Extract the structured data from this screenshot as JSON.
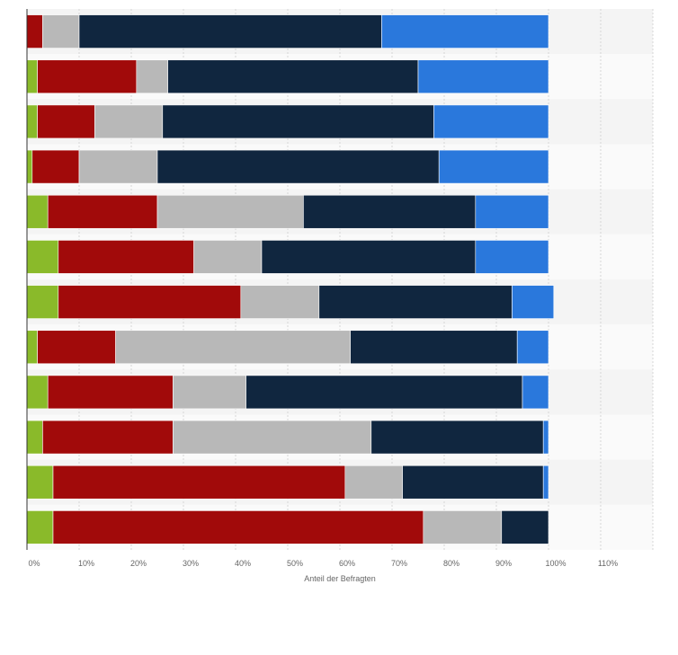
{
  "chart_data": {
    "type": "bar",
    "orientation": "horizontal",
    "stacked": true,
    "xlabel": "Anteil der Befragten",
    "xlim": [
      0,
      120
    ],
    "x_ticks": [
      "0%",
      "10%",
      "20%",
      "30%",
      "40%",
      "50%",
      "60%",
      "70%",
      "80%",
      "90%",
      "100%",
      "110%"
    ],
    "grid": true,
    "bar_count": 12,
    "series": [
      {
        "color": "#8aba2a",
        "values": [
          0,
          2,
          2,
          1,
          4,
          6,
          6,
          2,
          4,
          3,
          5,
          5
        ]
      },
      {
        "color": "#a10a0a",
        "values": [
          3,
          19,
          11,
          9,
          21,
          26,
          35,
          15,
          24,
          25,
          56,
          71
        ]
      },
      {
        "color": "#b8b8b8",
        "values": [
          7,
          6,
          13,
          15,
          28,
          13,
          15,
          45,
          14,
          38,
          11,
          15
        ]
      },
      {
        "color": "#10263f",
        "values": [
          58,
          48,
          52,
          54,
          33,
          41,
          37,
          32,
          53,
          33,
          27,
          9
        ]
      },
      {
        "color": "#2a78dc",
        "values": [
          32,
          25,
          22,
          21,
          14,
          14,
          8,
          6,
          5,
          1,
          1,
          0
        ]
      }
    ]
  }
}
